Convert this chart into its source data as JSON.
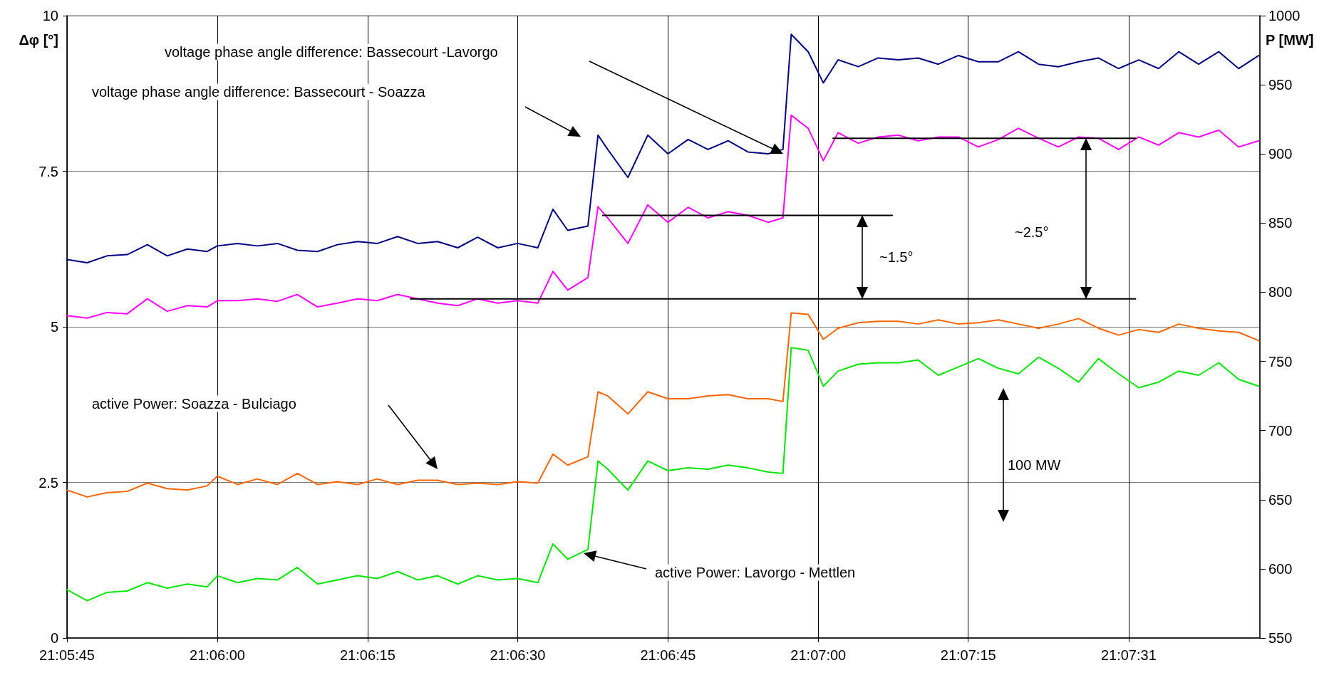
{
  "chart_data": {
    "type": "line",
    "ylabel": "Δφ [°]",
    "y2label": "P [MW]",
    "x": [
      21.09583,
      21.09639,
      21.09694,
      21.0975,
      21.09806,
      21.09861,
      21.09917,
      21.09972,
      21.1,
      21.10056,
      21.10111,
      21.10167,
      21.10222,
      21.10278,
      21.10333,
      21.10389,
      21.10444,
      21.105,
      21.10556,
      21.10611,
      21.10667,
      21.10722,
      21.10778,
      21.10833,
      21.10889,
      21.10931,
      21.10972,
      21.11028,
      21.11056,
      21.11083,
      21.11139,
      21.11194,
      21.1125,
      21.11306,
      21.11361,
      21.11417,
      21.11472,
      21.11528,
      21.11569,
      21.11592,
      21.11639,
      21.11681,
      21.11722,
      21.11778,
      21.11833,
      21.11889,
      21.11944,
      21.12,
      21.12056,
      21.12111,
      21.12167,
      21.12222,
      21.12278,
      21.12333,
      21.12389,
      21.12444,
      21.125,
      21.12556,
      21.12611,
      21.12667,
      21.12722,
      21.12778,
      21.12833,
      21.12889
    ],
    "series": [
      {
        "color": "#000080",
        "values": [
          6.08,
          6.03,
          6.14,
          6.16,
          6.32,
          6.14,
          6.25,
          6.21,
          6.3,
          6.34,
          6.3,
          6.34,
          6.23,
          6.21,
          6.32,
          6.37,
          6.34,
          6.45,
          6.34,
          6.37,
          6.27,
          6.44,
          6.27,
          6.34,
          6.27,
          6.89,
          6.55,
          6.62,
          8.08,
          7.85,
          7.4,
          8.08,
          7.78,
          8.01,
          7.85,
          7.99,
          7.81,
          7.78,
          7.85,
          9.7,
          9.42,
          8.92,
          9.29,
          9.18,
          9.32,
          9.29,
          9.32,
          9.22,
          9.36,
          9.26,
          9.26,
          9.42,
          9.22,
          9.18,
          9.26,
          9.32,
          9.15,
          9.29,
          9.15,
          9.42,
          9.22,
          9.42,
          9.15,
          9.36
        ]
      },
      {
        "color": "#ff00ff",
        "values": [
          5.18,
          5.14,
          5.23,
          5.21,
          5.45,
          5.25,
          5.34,
          5.32,
          5.42,
          5.42,
          5.45,
          5.41,
          5.52,
          5.32,
          5.38,
          5.45,
          5.42,
          5.52,
          5.45,
          5.38,
          5.34,
          5.45,
          5.38,
          5.42,
          5.38,
          5.89,
          5.59,
          5.79,
          6.93,
          6.75,
          6.34,
          6.96,
          6.68,
          6.92,
          6.75,
          6.85,
          6.79,
          6.68,
          6.75,
          8.4,
          8.19,
          7.67,
          8.12,
          7.95,
          8.05,
          8.08,
          7.99,
          8.05,
          8.05,
          7.89,
          8.01,
          8.19,
          8.03,
          7.89,
          8.05,
          8.03,
          7.85,
          8.05,
          7.92,
          8.12,
          8.05,
          8.16,
          7.89,
          7.99
        ]
      },
      {
        "color": "#ff6600",
        "axis": "y2",
        "values": [
          657,
          652,
          655,
          656,
          662,
          658,
          657,
          660,
          667,
          661,
          665,
          661,
          669,
          661,
          663,
          661,
          665,
          661,
          664,
          664,
          661,
          662,
          661,
          663,
          662,
          683,
          675,
          681,
          728,
          725,
          712,
          728,
          723,
          723,
          725,
          726,
          723,
          723,
          721,
          785,
          784,
          766,
          774,
          778,
          779,
          779,
          777,
          780,
          777,
          778,
          780,
          777,
          774,
          777,
          781,
          774,
          769,
          773,
          771,
          777,
          774,
          772,
          771,
          765
        ]
      },
      {
        "color": "#00e600",
        "axis": "y2",
        "values": [
          585,
          577,
          583,
          584,
          590,
          586,
          589,
          587,
          595,
          590,
          593,
          592,
          601,
          589,
          592,
          595,
          593,
          598,
          592,
          595,
          589,
          595,
          592,
          593,
          590,
          618,
          607,
          614,
          678,
          672,
          657,
          678,
          671,
          673,
          672,
          675,
          673,
          670,
          669,
          760,
          758,
          732,
          743,
          748,
          749,
          749,
          751,
          740,
          746,
          752,
          745,
          741,
          753,
          745,
          735,
          752,
          741,
          731,
          735,
          743,
          740,
          749,
          737,
          732
        ]
      },
      {
        "color": "#000000",
        "x": [
          21.10536,
          21.12547
        ],
        "values": [
          5.45,
          5.45
        ]
      },
      {
        "color": "#000000",
        "x": [
          21.11069,
          21.11872
        ],
        "values": [
          6.79,
          6.79
        ]
      },
      {
        "color": "#000000",
        "x": [
          21.11708,
          21.12547
        ],
        "values": [
          8.03,
          8.03
        ]
      }
    ],
    "xlim": [
      21.09583,
      21.12892
    ],
    "xticks": [
      {
        "value": 21.09583,
        "label": "21:05:45"
      },
      {
        "value": 21.1,
        "label": "21:06:00"
      },
      {
        "value": 21.10417,
        "label": "21:06:15"
      },
      {
        "value": 21.10833,
        "label": "21:06:30"
      },
      {
        "value": 21.1125,
        "label": "21:06:45"
      },
      {
        "value": 21.11667,
        "label": "21:07:00"
      },
      {
        "value": 21.12083,
        "label": "21:07:15"
      },
      {
        "value": 21.12528,
        "label": "21:07:31"
      }
    ],
    "ylim": [
      0,
      10
    ],
    "yticks": [
      0,
      2.5,
      5,
      7.5,
      10
    ],
    "y2lim": [
      550,
      1000
    ],
    "y2ticks": [
      550,
      600,
      650,
      700,
      750,
      800,
      850,
      900,
      950,
      1000
    ],
    "annotations": [
      "voltage phase angle difference: Bassecourt -Lavorgo",
      "voltage phase angle difference: Bassecourt - Soazza",
      "active Power: Soazza - Bulciago",
      "active Power: Lavorgo - Mettlen",
      "~1.5°",
      "~2.5°",
      "100 MW"
    ],
    "grid": true,
    "marker": "none",
    "line_style": "solid"
  }
}
